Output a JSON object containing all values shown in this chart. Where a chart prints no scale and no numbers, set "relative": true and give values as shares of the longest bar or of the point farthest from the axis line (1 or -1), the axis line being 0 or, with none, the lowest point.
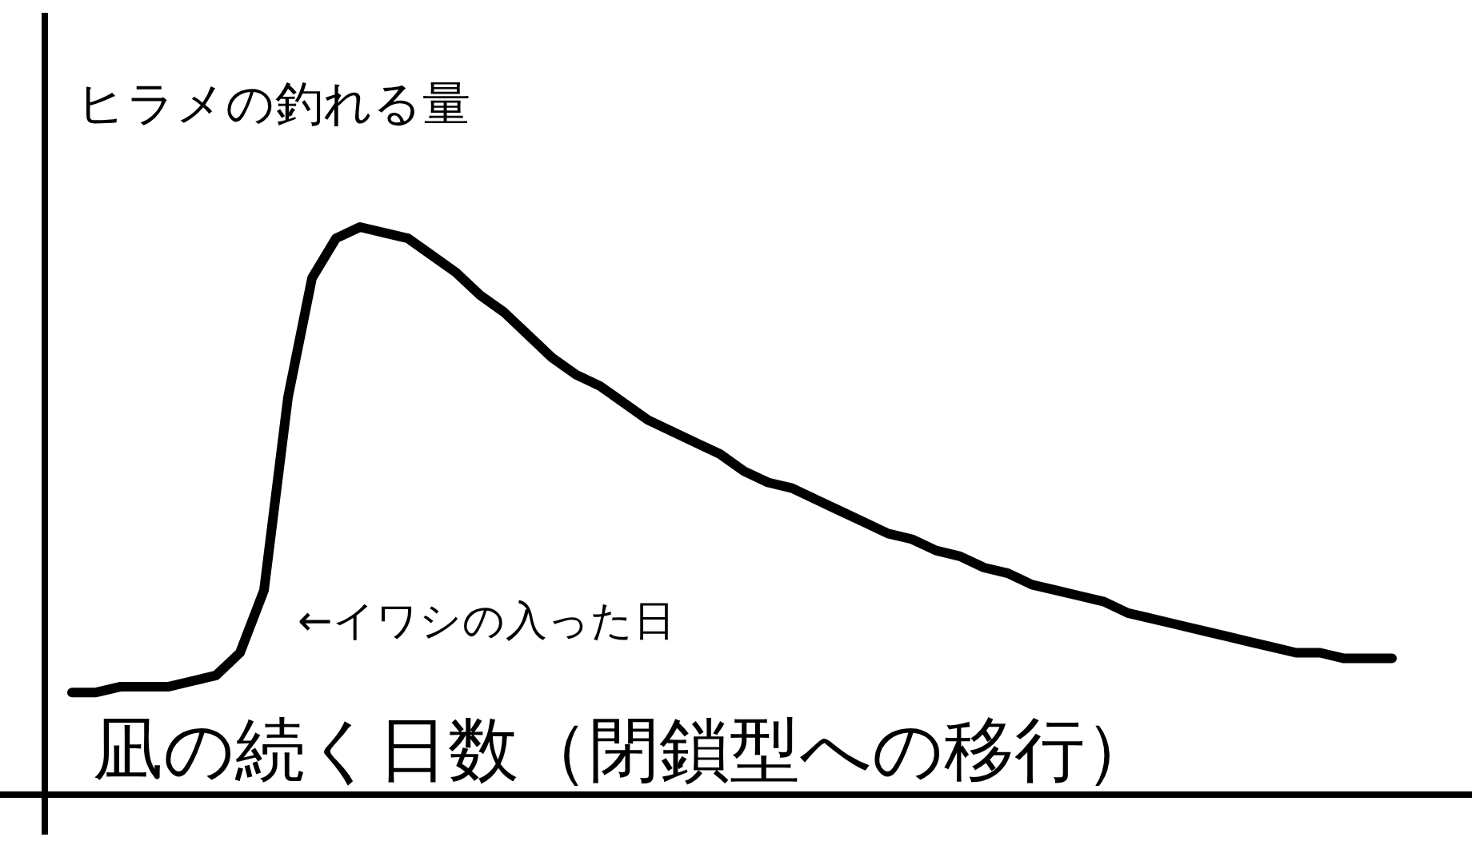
{
  "chart_data": {
    "type": "line",
    "relative": true,
    "color": "#000000",
    "ylabel": "ヒラメの釣れる量",
    "xlabel": "凪の続く日数（閉鎖型への移行）",
    "annotations": [
      "←イワシの入った日"
    ],
    "categories": [
      null,
      null,
      null,
      null,
      null,
      null,
      null,
      null,
      null,
      null,
      null,
      null,
      null,
      null,
      null,
      null,
      null,
      null,
      null,
      null,
      null,
      null,
      null,
      null,
      null,
      null,
      null,
      null,
      null,
      null,
      null,
      null,
      null,
      null,
      null,
      null,
      null,
      null,
      null,
      null,
      null,
      null,
      null,
      null,
      null,
      null,
      null,
      null,
      null,
      null,
      null,
      null,
      null,
      null,
      null,
      null
    ],
    "values": [
      0.18,
      0.18,
      0.19,
      0.19,
      0.19,
      0.2,
      0.21,
      0.25,
      0.36,
      0.7,
      0.91,
      0.98,
      1.0,
      0.99,
      0.98,
      0.95,
      0.92,
      0.88,
      0.85,
      0.81,
      0.77,
      0.74,
      0.72,
      0.69,
      0.66,
      0.64,
      0.62,
      0.6,
      0.57,
      0.55,
      0.54,
      0.52,
      0.5,
      0.48,
      0.46,
      0.45,
      0.43,
      0.42,
      0.4,
      0.39,
      0.37,
      0.36,
      0.35,
      0.34,
      0.32,
      0.31,
      0.3,
      0.29,
      0.28,
      0.27,
      0.26,
      0.25,
      0.25,
      0.24,
      0.24,
      0.24
    ]
  }
}
